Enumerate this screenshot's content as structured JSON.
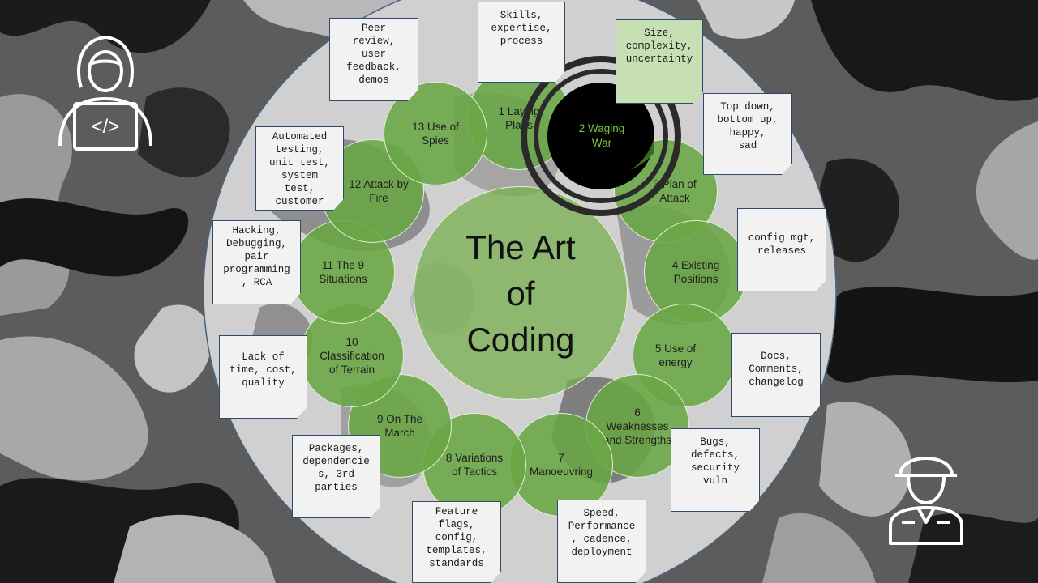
{
  "title": "The Art\nof\nCoding",
  "chapters": [
    {
      "id": "1",
      "label": "1 Laying\nPlans"
    },
    {
      "id": "2",
      "label": "2 Waging\nWar"
    },
    {
      "id": "3",
      "label": "3 Plan of\nAttack"
    },
    {
      "id": "4",
      "label": "4 Existing\nPositions"
    },
    {
      "id": "5",
      "label": "5 Use of\nenergy"
    },
    {
      "id": "6",
      "label": "6\nWeaknesses\nand Strengths"
    },
    {
      "id": "7",
      "label": "7\nManoeuvring"
    },
    {
      "id": "8",
      "label": "8 Variations\nof Tactics"
    },
    {
      "id": "9",
      "label": "9 On The\nMarch"
    },
    {
      "id": "10",
      "label": "10\nClassification\nof Terrain"
    },
    {
      "id": "11",
      "label": "11  The 9\nSituations"
    },
    {
      "id": "12",
      "label": "12 Attack by\nFire"
    },
    {
      "id": "13",
      "label": "13 Use of\nSpies"
    }
  ],
  "notes": [
    {
      "id": "skills",
      "text": "Skills,\nexpertise,\nprocess"
    },
    {
      "id": "size",
      "text": "Size,\ncomplexity,\nuncertainty"
    },
    {
      "id": "topdown",
      "text": "Top down,\nbottom up,\nhappy,\nsad"
    },
    {
      "id": "config",
      "text": "config mgt,\nreleases"
    },
    {
      "id": "docs",
      "text": "Docs,\nComments,\nchangelog"
    },
    {
      "id": "bugs",
      "text": "Bugs,\ndefects,\nsecurity\nvuln"
    },
    {
      "id": "speed",
      "text": "Speed,\nPerformance\n, cadence,\ndeployment"
    },
    {
      "id": "feature",
      "text": "Feature\nflags,\nconfig,\ntemplates,\nstandards"
    },
    {
      "id": "packages",
      "text": "Packages,\ndependencie\ns, 3rd\nparties"
    },
    {
      "id": "lack",
      "text": "Lack of\ntime, cost,\nquality"
    },
    {
      "id": "hacking",
      "text": "Hacking,\nDebugging,\npair\nprogramming\n, RCA"
    },
    {
      "id": "automated",
      "text": "Automated\ntesting,\nunit test,\nsystem\ntest,\ncustomer"
    },
    {
      "id": "peer",
      "text": "Peer\nreview,\nuser\nfeedback,\ndemos"
    }
  ],
  "colors": {
    "bubble": "#6aa646",
    "note": "#f2f2f2",
    "note_highlight": "#c6e0b4",
    "target": "#000000",
    "target_label": "#7ac943"
  },
  "icons": {
    "top_left": "coder-with-laptop-icon",
    "bottom_right": "soldier-icon"
  }
}
